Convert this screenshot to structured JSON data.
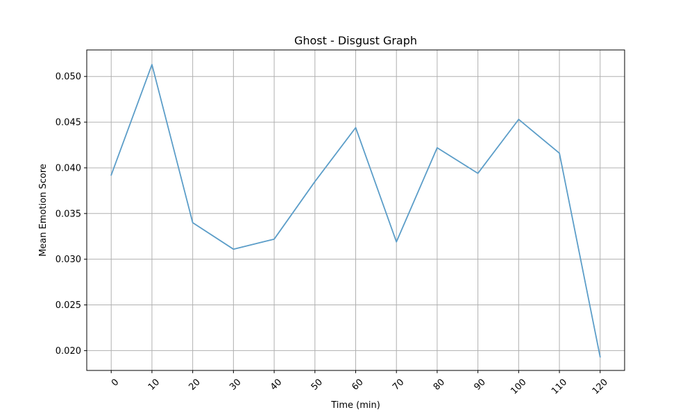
{
  "chart_data": {
    "type": "line",
    "title": "Ghost - Disgust Graph",
    "xlabel": "Time (min)",
    "ylabel": "Mean Emotion Score",
    "x": [
      0,
      10,
      20,
      30,
      40,
      50,
      60,
      70,
      80,
      90,
      100,
      110,
      120
    ],
    "series": [
      {
        "values": [
          0.0392,
          0.0513,
          0.034,
          0.0311,
          0.0322,
          0.0385,
          0.0444,
          0.0319,
          0.0422,
          0.0394,
          0.0453,
          0.0416,
          0.0193
        ]
      }
    ],
    "xticks": [
      0,
      10,
      20,
      30,
      40,
      50,
      60,
      70,
      80,
      90,
      100,
      110,
      120
    ],
    "xtick_labels": [
      "0",
      "10",
      "20",
      "30",
      "40",
      "50",
      "60",
      "70",
      "80",
      "90",
      "100",
      "110",
      "120"
    ],
    "yticks": [
      0.02,
      0.025,
      0.03,
      0.035,
      0.04,
      0.045,
      0.05
    ],
    "ytick_labels": [
      "0.020",
      "0.025",
      "0.030",
      "0.035",
      "0.040",
      "0.045",
      "0.050"
    ],
    "xlim": [
      -6,
      126
    ],
    "ylim": [
      0.01783,
      0.0529
    ],
    "grid": true,
    "xtick_rotation": "45 degrees",
    "line_color": "#5b9dc8"
  }
}
